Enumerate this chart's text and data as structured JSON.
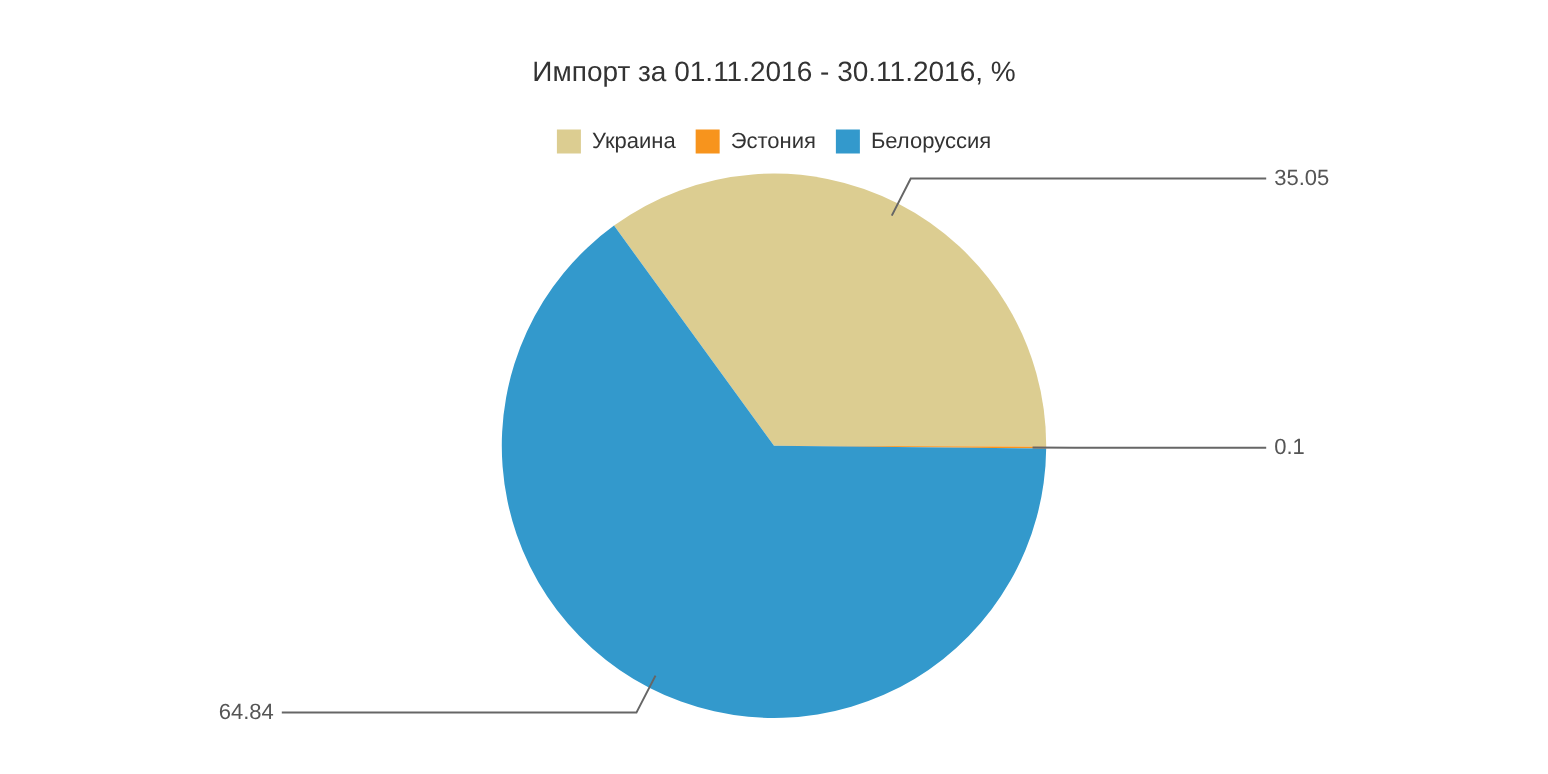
{
  "chart_data": {
    "type": "pie",
    "title": "Импорт за 01.11.2016 - 30.11.2016, %",
    "categories": [
      "Украина",
      "Эстония",
      "Белоруссия"
    ],
    "values": [
      35.05,
      0.1,
      64.84
    ],
    "colors": [
      "#dccd91",
      "#f7941d",
      "#3399cc"
    ],
    "legend": "top",
    "data_labels": true
  }
}
